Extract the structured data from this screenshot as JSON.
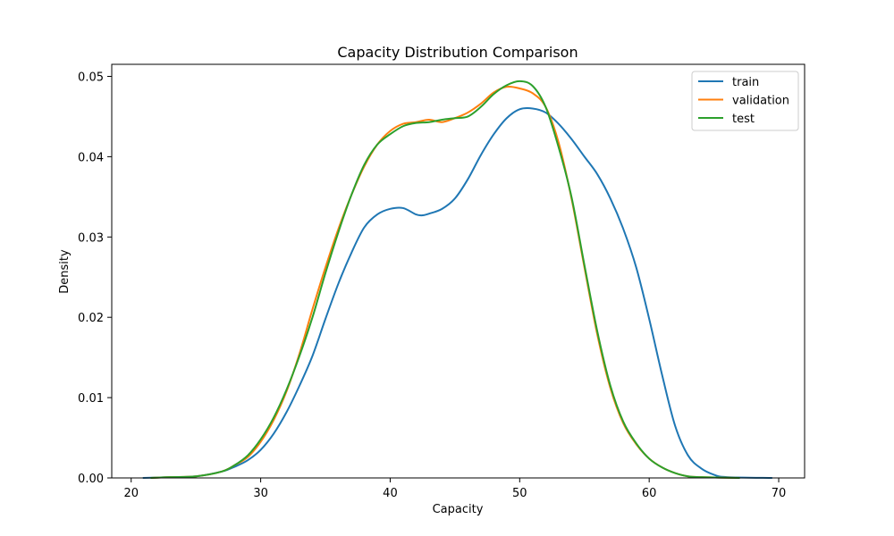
{
  "chart_data": {
    "type": "line",
    "title": "Capacity Distribution Comparison",
    "xlabel": "Capacity",
    "ylabel": "Density",
    "xlim": [
      18.5,
      72
    ],
    "ylim": [
      0,
      0.0515
    ],
    "xticks": [
      20,
      30,
      40,
      50,
      60,
      70
    ],
    "yticks": [
      0.0,
      0.01,
      0.02,
      0.03,
      0.04,
      0.05
    ],
    "ytick_labels": [
      "0.00",
      "0.01",
      "0.02",
      "0.03",
      "0.04",
      "0.05"
    ],
    "grid": false,
    "legend_position": "top-right",
    "series": [
      {
        "name": "train",
        "color": "#1f77b4",
        "points": [
          [
            20.9,
            0
          ],
          [
            23,
            0.0001
          ],
          [
            25,
            0.0002
          ],
          [
            27,
            0.0008
          ],
          [
            28,
            0.0014
          ],
          [
            29,
            0.0022
          ],
          [
            30,
            0.0035
          ],
          [
            31,
            0.0055
          ],
          [
            32,
            0.0082
          ],
          [
            33,
            0.0115
          ],
          [
            34,
            0.0152
          ],
          [
            35,
            0.0198
          ],
          [
            36,
            0.0242
          ],
          [
            37,
            0.028
          ],
          [
            38,
            0.0312
          ],
          [
            39,
            0.0328
          ],
          [
            40,
            0.0335
          ],
          [
            41,
            0.0336
          ],
          [
            42,
            0.0328
          ],
          [
            42.5,
            0.0327
          ],
          [
            43,
            0.0329
          ],
          [
            44,
            0.0335
          ],
          [
            45,
            0.0348
          ],
          [
            46,
            0.0372
          ],
          [
            47,
            0.0402
          ],
          [
            48,
            0.0428
          ],
          [
            49,
            0.0448
          ],
          [
            50,
            0.0459
          ],
          [
            51,
            0.046
          ],
          [
            52,
            0.0455
          ],
          [
            53,
            0.0441
          ],
          [
            54,
            0.0422
          ],
          [
            55,
            0.04
          ],
          [
            56,
            0.0378
          ],
          [
            57,
            0.0348
          ],
          [
            58,
            0.031
          ],
          [
            59,
            0.0262
          ],
          [
            60,
            0.0198
          ],
          [
            61,
            0.0128
          ],
          [
            62,
            0.0065
          ],
          [
            63,
            0.0028
          ],
          [
            64,
            0.0012
          ],
          [
            65,
            0.0004
          ],
          [
            66,
            0.0001
          ],
          [
            69.5,
            0
          ]
        ]
      },
      {
        "name": "validation",
        "color": "#ff7f0e",
        "points": [
          [
            21.5,
            0
          ],
          [
            23,
            0.0001
          ],
          [
            25,
            0.0002
          ],
          [
            27,
            0.0008
          ],
          [
            28,
            0.0016
          ],
          [
            29,
            0.0026
          ],
          [
            30,
            0.0045
          ],
          [
            31,
            0.0072
          ],
          [
            32,
            0.0108
          ],
          [
            33,
            0.0155
          ],
          [
            34,
            0.021
          ],
          [
            35,
            0.0262
          ],
          [
            36,
            0.031
          ],
          [
            37,
            0.0352
          ],
          [
            38,
            0.0388
          ],
          [
            39,
            0.0415
          ],
          [
            40,
            0.0432
          ],
          [
            41,
            0.0441
          ],
          [
            42,
            0.0443
          ],
          [
            43,
            0.0446
          ],
          [
            44,
            0.0443
          ],
          [
            45,
            0.0448
          ],
          [
            46,
            0.0455
          ],
          [
            47,
            0.0466
          ],
          [
            48,
            0.048
          ],
          [
            49,
            0.0487
          ],
          [
            50,
            0.0485
          ],
          [
            51,
            0.0479
          ],
          [
            52,
            0.0462
          ],
          [
            53,
            0.0418
          ],
          [
            54,
            0.0348
          ],
          [
            55,
            0.0262
          ],
          [
            56,
            0.0178
          ],
          [
            57,
            0.0112
          ],
          [
            58,
            0.0068
          ],
          [
            59,
            0.0042
          ],
          [
            60,
            0.0024
          ],
          [
            61,
            0.0013
          ],
          [
            62,
            0.0006
          ],
          [
            63,
            0.0002
          ],
          [
            64,
            0.0001
          ],
          [
            67,
            0
          ]
        ]
      },
      {
        "name": "test",
        "color": "#2ca02c",
        "points": [
          [
            21.5,
            0
          ],
          [
            23,
            0.0001
          ],
          [
            25,
            0.0002
          ],
          [
            27,
            0.0008
          ],
          [
            28,
            0.0016
          ],
          [
            29,
            0.0028
          ],
          [
            30,
            0.0048
          ],
          [
            31,
            0.0075
          ],
          [
            32,
            0.011
          ],
          [
            33,
            0.0152
          ],
          [
            34,
            0.02
          ],
          [
            35,
            0.0255
          ],
          [
            36,
            0.0306
          ],
          [
            37,
            0.0352
          ],
          [
            38,
            0.039
          ],
          [
            39,
            0.0415
          ],
          [
            40,
            0.0428
          ],
          [
            41,
            0.0438
          ],
          [
            42,
            0.0442
          ],
          [
            43,
            0.0443
          ],
          [
            44,
            0.0446
          ],
          [
            45,
            0.0448
          ],
          [
            46,
            0.045
          ],
          [
            47,
            0.0462
          ],
          [
            48,
            0.0478
          ],
          [
            49,
            0.0489
          ],
          [
            50,
            0.0494
          ],
          [
            51,
            0.0488
          ],
          [
            52,
            0.0462
          ],
          [
            53,
            0.0412
          ],
          [
            54,
            0.035
          ],
          [
            55,
            0.0265
          ],
          [
            56,
            0.0182
          ],
          [
            57,
            0.0115
          ],
          [
            58,
            0.007
          ],
          [
            59,
            0.0043
          ],
          [
            60,
            0.0024
          ],
          [
            61,
            0.0013
          ],
          [
            62,
            0.0006
          ],
          [
            63,
            0.0002
          ],
          [
            64,
            0.0001
          ],
          [
            67,
            0
          ]
        ]
      }
    ]
  }
}
